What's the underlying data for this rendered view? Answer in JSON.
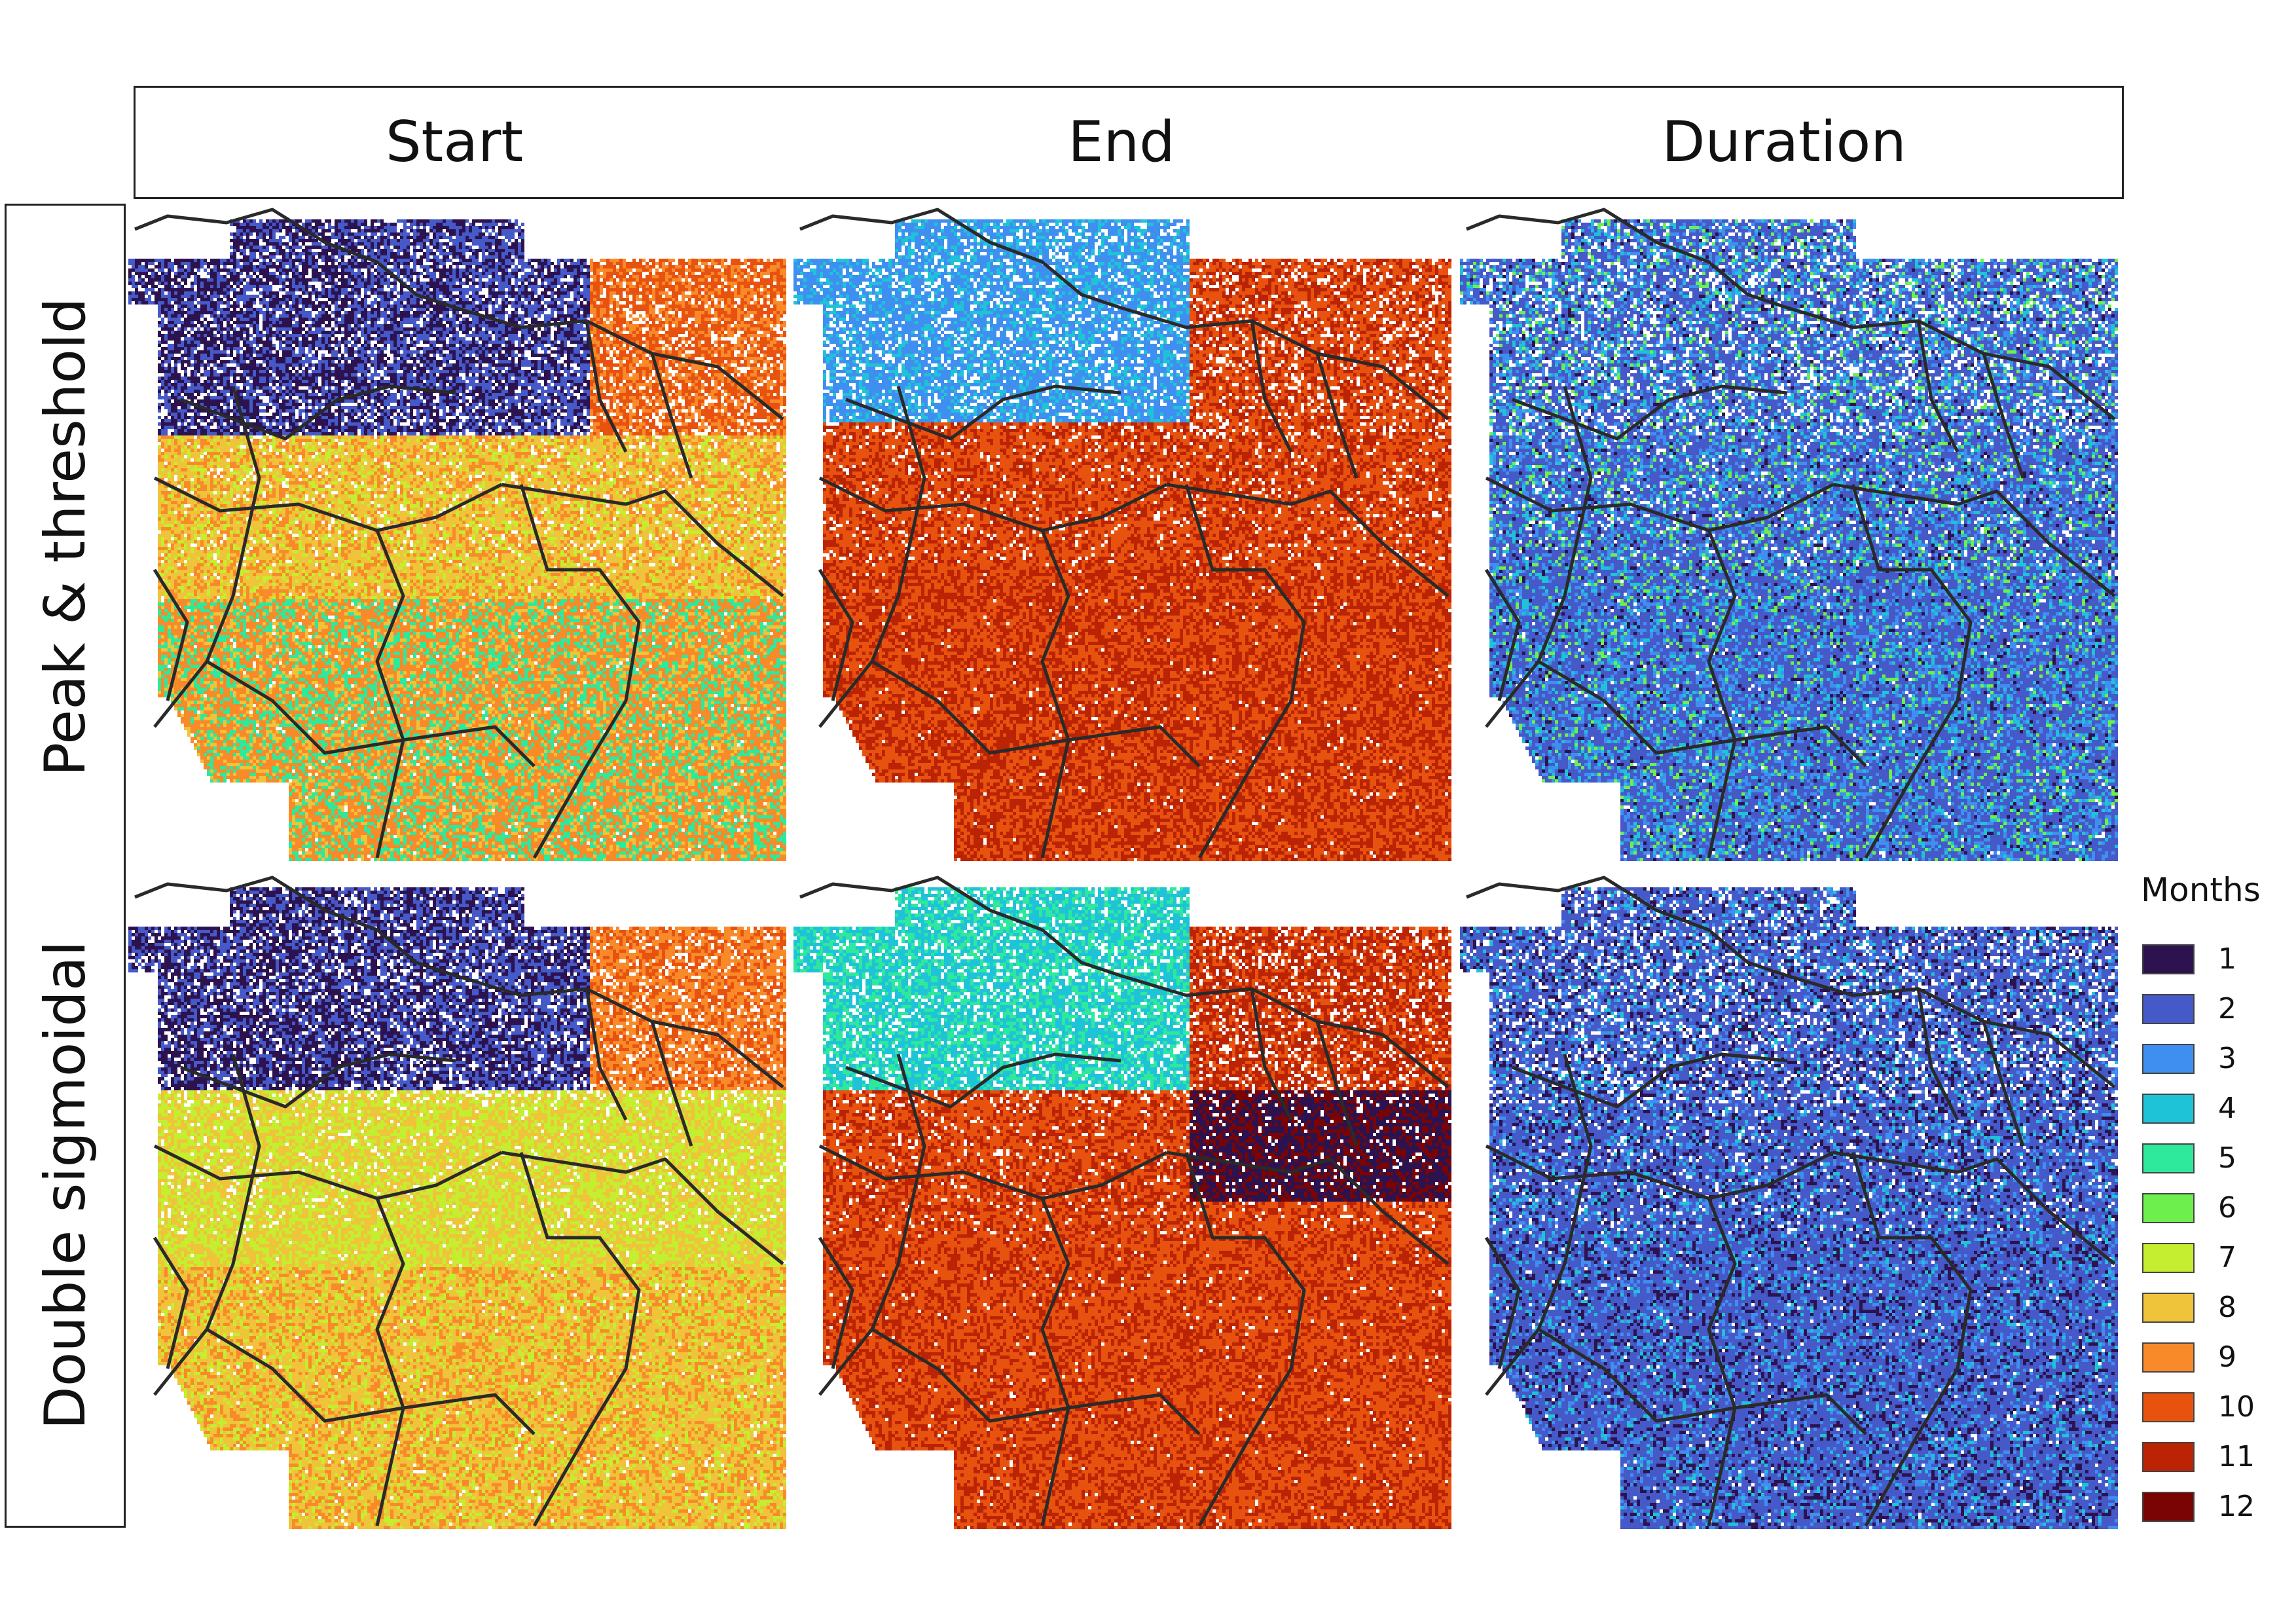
{
  "columns": [
    "Start",
    "End",
    "Duration"
  ],
  "rows": [
    "Peak & threshold",
    "Double sigmoidal"
  ],
  "legend": {
    "title": "Months",
    "items": [
      {
        "label": "1",
        "color": "#2c1350"
      },
      {
        "label": "2",
        "color": "#4559c8"
      },
      {
        "label": "3",
        "color": "#3f8ff0"
      },
      {
        "label": "4",
        "color": "#1fc3d8"
      },
      {
        "label": "5",
        "color": "#2ee89c"
      },
      {
        "label": "6",
        "color": "#6df04d"
      },
      {
        "label": "7",
        "color": "#c4ee2f"
      },
      {
        "label": "8",
        "color": "#efc33a"
      },
      {
        "label": "9",
        "color": "#f98a2a"
      },
      {
        "label": "10",
        "color": "#e8520f"
      },
      {
        "label": "11",
        "color": "#bb2305"
      },
      {
        "label": "12",
        "color": "#7a0403"
      }
    ]
  },
  "panels": [
    {
      "row": 0,
      "col": 0,
      "name": "start-peak-threshold"
    },
    {
      "row": 0,
      "col": 1,
      "name": "end-peak-threshold"
    },
    {
      "row": 0,
      "col": 2,
      "name": "duration-peak-threshold"
    },
    {
      "row": 1,
      "col": 0,
      "name": "start-double-sigmoidal"
    },
    {
      "row": 1,
      "col": 1,
      "name": "end-double-sigmoidal"
    },
    {
      "row": 1,
      "col": 2,
      "name": "duration-double-sigmoidal"
    }
  ]
}
